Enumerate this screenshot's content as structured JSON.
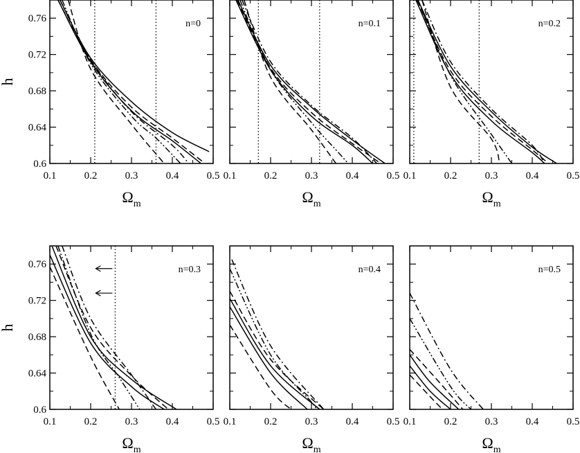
{
  "chart_data": {
    "type": "line",
    "grid": false,
    "panels": [
      {
        "label": "n=0",
        "xlabel": "Ωm",
        "ylabel": "h",
        "xlim": [
          0.1,
          0.5
        ],
        "ylim": [
          0.6,
          0.78
        ],
        "xticks": [
          "0.1",
          "0.2",
          "0.3",
          "0.4",
          "0.5"
        ],
        "yticks": [
          "0.6",
          "0.64",
          "0.68",
          "0.72",
          "0.76"
        ],
        "vlines": [
          0.21,
          0.36
        ],
        "arrows": [],
        "series": [
          {
            "style": "solid",
            "points": [
              [
                0.125,
                0.78
              ],
              [
                0.2,
                0.716
              ],
              [
                0.3,
                0.668
              ],
              [
                0.4,
                0.634
              ],
              [
                0.49,
                0.613
              ]
            ]
          },
          {
            "style": "solid",
            "points": [
              [
                0.12,
                0.78
              ],
              [
                0.2,
                0.712
              ],
              [
                0.3,
                0.658
              ],
              [
                0.4,
                0.625
              ],
              [
                0.47,
                0.6
              ]
            ]
          },
          {
            "style": "dashed",
            "points": [
              [
                0.12,
                0.78
              ],
              [
                0.2,
                0.714
              ],
              [
                0.3,
                0.662
              ],
              [
                0.4,
                0.628
              ],
              [
                0.48,
                0.6
              ]
            ]
          },
          {
            "style": "dashed",
            "points": [
              [
                0.145,
                0.78
              ],
              [
                0.2,
                0.704
              ],
              [
                0.3,
                0.643
              ],
              [
                0.38,
                0.6
              ]
            ]
          },
          {
            "style": "dashdot",
            "points": [
              [
                0.125,
                0.78
              ],
              [
                0.2,
                0.714
              ],
              [
                0.3,
                0.657
              ],
              [
                0.4,
                0.62
              ],
              [
                0.44,
                0.6
              ]
            ]
          },
          {
            "style": "dashdotdot",
            "points": [
              [
                0.13,
                0.78
              ],
              [
                0.2,
                0.71
              ],
              [
                0.3,
                0.652
              ],
              [
                0.36,
                0.628
              ],
              [
                0.42,
                0.6
              ]
            ]
          }
        ]
      },
      {
        "label": "n=0.1",
        "xlabel": "Ωm",
        "ylabel": "",
        "xlim": [
          0.1,
          0.5
        ],
        "ylim": [
          0.6,
          0.78
        ],
        "xticks": [
          "0.1",
          "0.2",
          "0.3",
          "0.4",
          "0.5"
        ],
        "yticks": [],
        "vlines": [
          0.17,
          0.32
        ],
        "arrows": [],
        "series": [
          {
            "style": "solid",
            "points": [
              [
                0.12,
                0.78
              ],
              [
                0.2,
                0.708
              ],
              [
                0.3,
                0.662
              ],
              [
                0.4,
                0.626
              ],
              [
                0.48,
                0.6
              ]
            ]
          },
          {
            "style": "solid",
            "points": [
              [
                0.115,
                0.78
              ],
              [
                0.2,
                0.703
              ],
              [
                0.3,
                0.652
              ],
              [
                0.4,
                0.62
              ],
              [
                0.45,
                0.6
              ]
            ]
          },
          {
            "style": "dashed",
            "points": [
              [
                0.118,
                0.78
              ],
              [
                0.2,
                0.705
              ],
              [
                0.3,
                0.656
              ],
              [
                0.4,
                0.622
              ],
              [
                0.47,
                0.6
              ]
            ]
          },
          {
            "style": "dashed",
            "points": [
              [
                0.135,
                0.78
              ],
              [
                0.2,
                0.695
              ],
              [
                0.3,
                0.637
              ],
              [
                0.36,
                0.6
              ]
            ]
          },
          {
            "style": "dashdot",
            "points": [
              [
                0.13,
                0.78
              ],
              [
                0.2,
                0.712
              ],
              [
                0.3,
                0.664
              ],
              [
                0.4,
                0.628
              ],
              [
                0.46,
                0.6
              ]
            ]
          },
          {
            "style": "dashdotdot",
            "points": [
              [
                0.125,
                0.78
              ],
              [
                0.2,
                0.703
              ],
              [
                0.3,
                0.645
              ],
              [
                0.36,
                0.615
              ],
              [
                0.39,
                0.6
              ]
            ]
          }
        ]
      },
      {
        "label": "n=0.2",
        "xlabel": "Ωm",
        "ylabel": "",
        "xlim": [
          0.1,
          0.5
        ],
        "ylim": [
          0.6,
          0.78
        ],
        "xticks": [
          "0.1",
          "0.2",
          "0.3",
          "0.4",
          "0.5"
        ],
        "yticks": [],
        "vlines": [
          0.11,
          0.27
        ],
        "arrows": [],
        "series": [
          {
            "style": "solid",
            "points": [
              [
                0.12,
                0.78
              ],
              [
                0.2,
                0.707
              ],
              [
                0.3,
                0.657
              ],
              [
                0.4,
                0.618
              ],
              [
                0.46,
                0.6
              ]
            ]
          },
          {
            "style": "solid",
            "points": [
              [
                0.115,
                0.78
              ],
              [
                0.2,
                0.698
              ],
              [
                0.3,
                0.647
              ],
              [
                0.4,
                0.612
              ],
              [
                0.43,
                0.6
              ]
            ]
          },
          {
            "style": "dashed",
            "points": [
              [
                0.118,
                0.78
              ],
              [
                0.2,
                0.702
              ],
              [
                0.3,
                0.652
              ],
              [
                0.4,
                0.615
              ],
              [
                0.44,
                0.6
              ]
            ]
          },
          {
            "style": "dashed",
            "points": [
              [
                0.13,
                0.78
              ],
              [
                0.2,
                0.684
              ],
              [
                0.3,
                0.627
              ],
              [
                0.32,
                0.6
              ]
            ]
          },
          {
            "style": "dashdot",
            "points": [
              [
                0.13,
                0.78
              ],
              [
                0.2,
                0.712
              ],
              [
                0.3,
                0.66
              ],
              [
                0.4,
                0.62
              ],
              [
                0.43,
                0.6
              ]
            ]
          },
          {
            "style": "dashdotdot",
            "points": [
              [
                0.12,
                0.78
              ],
              [
                0.2,
                0.697
              ],
              [
                0.3,
                0.632
              ],
              [
                0.35,
                0.6
              ]
            ]
          }
        ]
      },
      {
        "label": "n=0.3",
        "xlabel": "Ωm",
        "ylabel": "h",
        "xlim": [
          0.1,
          0.5
        ],
        "ylim": [
          0.6,
          0.78
        ],
        "xticks": [
          "0.1",
          "0.2",
          "0.3",
          "0.4",
          "0.5"
        ],
        "yticks": [
          "0.6",
          "0.64",
          "0.68",
          "0.72",
          "0.76"
        ],
        "vlines": [
          0.26
        ],
        "arrows": [
          0.755,
          0.728
        ],
        "series": [
          {
            "style": "solid",
            "points": [
              [
                0.105,
                0.78
              ],
              [
                0.2,
                0.68
              ],
              [
                0.3,
                0.633
              ],
              [
                0.41,
                0.6
              ]
            ]
          },
          {
            "style": "solid",
            "points": [
              [
                0.1,
                0.77
              ],
              [
                0.2,
                0.673
              ],
              [
                0.3,
                0.625
              ],
              [
                0.38,
                0.6
              ]
            ]
          },
          {
            "style": "dashed",
            "points": [
              [
                0.115,
                0.78
              ],
              [
                0.2,
                0.69
              ],
              [
                0.3,
                0.637
              ],
              [
                0.39,
                0.6
              ]
            ]
          },
          {
            "style": "dashed",
            "points": [
              [
                0.1,
                0.757
              ],
              [
                0.2,
                0.658
              ],
              [
                0.27,
                0.6
              ]
            ]
          },
          {
            "style": "dashdot",
            "points": [
              [
                0.13,
                0.78
              ],
              [
                0.2,
                0.7
              ],
              [
                0.3,
                0.638
              ],
              [
                0.36,
                0.6
              ]
            ]
          },
          {
            "style": "dashdotdot",
            "points": [
              [
                0.12,
                0.78
              ],
              [
                0.2,
                0.683
              ],
              [
                0.27,
                0.635
              ],
              [
                0.32,
                0.6
              ]
            ]
          }
        ]
      },
      {
        "label": "n=0.4",
        "xlabel": "Ωm",
        "ylabel": "",
        "xlim": [
          0.1,
          0.5
        ],
        "ylim": [
          0.6,
          0.78
        ],
        "xticks": [
          "0.1",
          "0.2",
          "0.3",
          "0.4",
          "0.5"
        ],
        "yticks": [],
        "vlines": [],
        "arrows": [],
        "series": [
          {
            "style": "solid",
            "points": [
              [
                0.1,
                0.722
              ],
              [
                0.2,
                0.648
              ],
              [
                0.32,
                0.6
              ]
            ]
          },
          {
            "style": "solid",
            "points": [
              [
                0.1,
                0.713
              ],
              [
                0.2,
                0.64
              ],
              [
                0.29,
                0.6
              ]
            ]
          },
          {
            "style": "dashed",
            "points": [
              [
                0.1,
                0.73
              ],
              [
                0.2,
                0.655
              ],
              [
                0.33,
                0.6
              ]
            ]
          },
          {
            "style": "dashed",
            "points": [
              [
                0.1,
                0.693
              ],
              [
                0.2,
                0.622
              ],
              [
                0.25,
                0.6
              ]
            ]
          },
          {
            "style": "dashdot",
            "points": [
              [
                0.105,
                0.765
              ],
              [
                0.2,
                0.67
              ],
              [
                0.33,
                0.6
              ]
            ]
          },
          {
            "style": "dashdotdot",
            "points": [
              [
                0.1,
                0.755
              ],
              [
                0.2,
                0.66
              ],
              [
                0.3,
                0.608
              ],
              [
                0.31,
                0.6
              ]
            ]
          }
        ]
      },
      {
        "label": "n=0.5",
        "xlabel": "Ωm",
        "ylabel": "",
        "xlim": [
          0.1,
          0.5
        ],
        "ylim": [
          0.6,
          0.78
        ],
        "xticks": [
          "0.1",
          "0.2",
          "0.3",
          "0.4",
          "0.5"
        ],
        "yticks": [],
        "vlines": [],
        "arrows": [],
        "series": [
          {
            "style": "solid",
            "points": [
              [
                0.1,
                0.66
              ],
              [
                0.15,
                0.63
              ],
              [
                0.22,
                0.6
              ]
            ]
          },
          {
            "style": "solid",
            "points": [
              [
                0.1,
                0.648
              ],
              [
                0.15,
                0.62
              ],
              [
                0.2,
                0.6
              ]
            ]
          },
          {
            "style": "dashed",
            "points": [
              [
                0.1,
                0.666
              ],
              [
                0.18,
                0.626
              ],
              [
                0.23,
                0.6
              ]
            ]
          },
          {
            "style": "dashed",
            "points": [
              [
                0.1,
                0.638
              ],
              [
                0.15,
                0.614
              ],
              [
                0.18,
                0.6
              ]
            ]
          },
          {
            "style": "dashdot",
            "points": [
              [
                0.1,
                0.728
              ],
              [
                0.2,
                0.644
              ],
              [
                0.28,
                0.6
              ]
            ]
          },
          {
            "style": "dashdotdot",
            "points": [
              [
                0.1,
                0.7
              ],
              [
                0.2,
                0.625
              ],
              [
                0.25,
                0.6
              ]
            ]
          }
        ]
      }
    ]
  }
}
